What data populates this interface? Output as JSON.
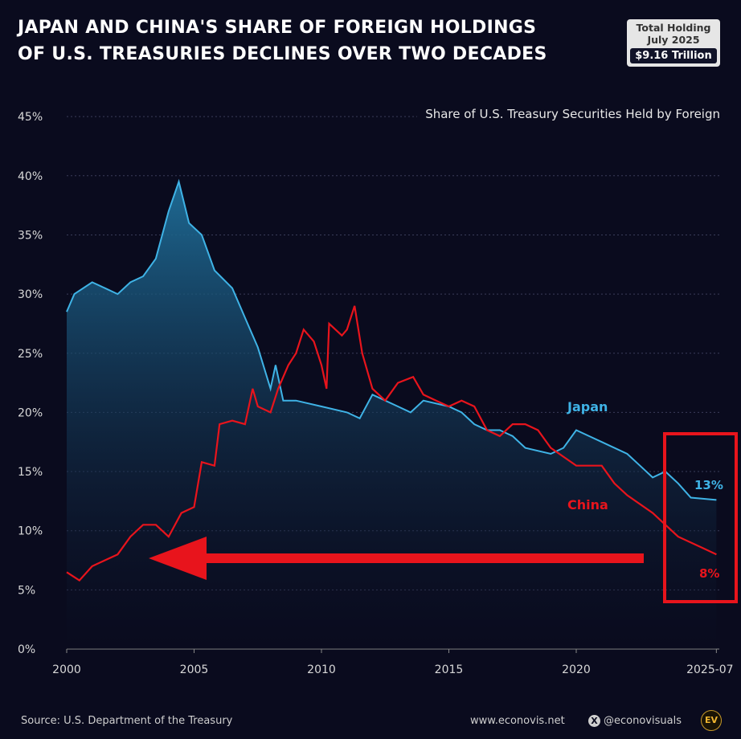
{
  "title_lines": [
    "JAPAN AND CHINA'S SHARE OF FOREIGN HOLDINGS",
    "OF U.S. TREASURIES DECLINES OVER TWO DECADES"
  ],
  "badge": {
    "line1": "Total Holding",
    "line2": "July 2025",
    "value": "$9.16 Trillion"
  },
  "footer": {
    "source": "Source: U.S. Department of the Treasury",
    "website": "www.econovis.net",
    "handle": "@econovisuals",
    "logo": "EV"
  },
  "chart_data": {
    "type": "line",
    "title": "JAPAN AND CHINA'S SHARE OF FOREIGN HOLDINGS OF U.S. TREASURIES DECLINES OVER TWO DECADES",
    "subtitle": "Share of U.S. Treasury Securities Held by Foreign",
    "xlabel": "",
    "ylabel": "",
    "xlim": [
      2000,
      2025.6
    ],
    "ylim": [
      0,
      45
    ],
    "x_ticks": [
      {
        "v": 2000,
        "label": "2000"
      },
      {
        "v": 2005,
        "label": "2005"
      },
      {
        "v": 2010,
        "label": "2010"
      },
      {
        "v": 2015,
        "label": "2015"
      },
      {
        "v": 2020,
        "label": "2020"
      },
      {
        "v": 2025.5,
        "label": "2025-07"
      }
    ],
    "y_ticks": [
      0,
      5,
      10,
      15,
      20,
      25,
      30,
      35,
      40,
      45
    ],
    "y_tick_labels": [
      "0%",
      "5%",
      "10%",
      "15%",
      "20%",
      "25%",
      "30%",
      "35%",
      "40%",
      "45%"
    ],
    "grid": "horizontal dashed",
    "colors": {
      "Japan": "#3fb3e6",
      "China": "#e8141c",
      "highlight": "#e8141c"
    },
    "series": [
      {
        "name": "Japan",
        "end_label": "13%",
        "points": [
          [
            2000,
            28.5
          ],
          [
            2000.3,
            30
          ],
          [
            2001,
            31
          ],
          [
            2001.5,
            30.5
          ],
          [
            2002,
            30
          ],
          [
            2002.5,
            31
          ],
          [
            2003,
            31.5
          ],
          [
            2003.5,
            33
          ],
          [
            2004,
            37
          ],
          [
            2004.4,
            39.5
          ],
          [
            2004.8,
            36
          ],
          [
            2005.3,
            35
          ],
          [
            2005.8,
            32
          ],
          [
            2006.5,
            30.5
          ],
          [
            2007,
            28
          ],
          [
            2007.5,
            25.5
          ],
          [
            2008,
            22
          ],
          [
            2008.2,
            24
          ],
          [
            2008.5,
            21
          ],
          [
            2009,
            21
          ],
          [
            2010,
            20.5
          ],
          [
            2011,
            20
          ],
          [
            2011.5,
            19.5
          ],
          [
            2012,
            21.5
          ],
          [
            2013,
            20.5
          ],
          [
            2013.5,
            20
          ],
          [
            2014,
            21
          ],
          [
            2015,
            20.5
          ],
          [
            2015.5,
            20
          ],
          [
            2016,
            19
          ],
          [
            2016.5,
            18.5
          ],
          [
            2017,
            18.5
          ],
          [
            2017.5,
            18
          ],
          [
            2018,
            17
          ],
          [
            2019,
            16.5
          ],
          [
            2019.5,
            17
          ],
          [
            2020,
            18.5
          ],
          [
            2020.5,
            18
          ],
          [
            2021,
            17.5
          ],
          [
            2022,
            16.5
          ],
          [
            2022.5,
            15.5
          ],
          [
            2023,
            14.5
          ],
          [
            2023.5,
            15
          ],
          [
            2024,
            14
          ],
          [
            2024.5,
            12.8
          ],
          [
            2025.5,
            12.6
          ]
        ]
      },
      {
        "name": "China",
        "end_label": "8%",
        "points": [
          [
            2000,
            6.5
          ],
          [
            2000.5,
            5.8
          ],
          [
            2001,
            7
          ],
          [
            2001.5,
            7.5
          ],
          [
            2002,
            8
          ],
          [
            2002.5,
            9.5
          ],
          [
            2003,
            10.5
          ],
          [
            2003.5,
            10.5
          ],
          [
            2004,
            9.5
          ],
          [
            2004.5,
            11.5
          ],
          [
            2005,
            12
          ],
          [
            2005.3,
            15.8
          ],
          [
            2005.8,
            15.5
          ],
          [
            2006,
            19
          ],
          [
            2006.5,
            19.3
          ],
          [
            2007,
            19
          ],
          [
            2007.3,
            22
          ],
          [
            2007.5,
            20.5
          ],
          [
            2008,
            20
          ],
          [
            2008.3,
            22
          ],
          [
            2008.7,
            24
          ],
          [
            2009,
            25
          ],
          [
            2009.3,
            27
          ],
          [
            2009.7,
            26
          ],
          [
            2010,
            24
          ],
          [
            2010.2,
            22
          ],
          [
            2010.3,
            27.5
          ],
          [
            2010.8,
            26.5
          ],
          [
            2011,
            27
          ],
          [
            2011.3,
            29
          ],
          [
            2011.6,
            25
          ],
          [
            2012,
            22
          ],
          [
            2012.5,
            21
          ],
          [
            2013,
            22.5
          ],
          [
            2013.6,
            23
          ],
          [
            2014,
            21.5
          ],
          [
            2014.5,
            21
          ],
          [
            2015,
            20.5
          ],
          [
            2015.5,
            21
          ],
          [
            2016,
            20.5
          ],
          [
            2016.5,
            18.5
          ],
          [
            2017,
            18
          ],
          [
            2017.5,
            19
          ],
          [
            2018,
            19
          ],
          [
            2018.5,
            18.5
          ],
          [
            2019,
            17
          ],
          [
            2020,
            15.5
          ],
          [
            2021,
            15.5
          ],
          [
            2021.5,
            14
          ],
          [
            2022,
            13
          ],
          [
            2023,
            11.5
          ],
          [
            2023.5,
            10.5
          ],
          [
            2024,
            9.5
          ],
          [
            2025,
            8.5
          ],
          [
            2025.5,
            8
          ]
        ]
      }
    ]
  }
}
